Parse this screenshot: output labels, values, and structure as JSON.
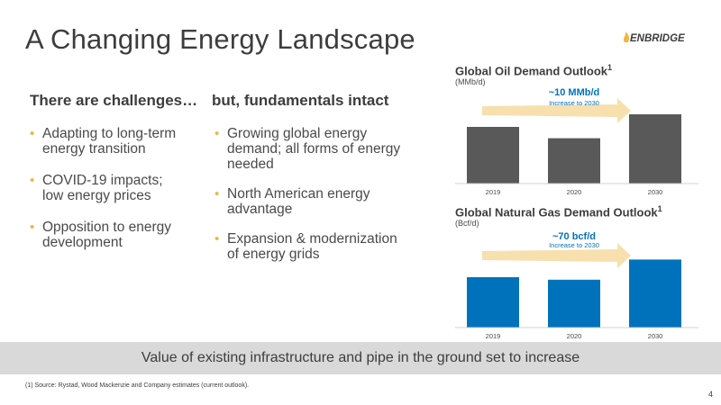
{
  "slide": {
    "title": "A Changing Energy Landscape",
    "logo_text": "ENBRIDGE",
    "left_heading": "There are challenges…",
    "right_heading": "but, fundamentals intact",
    "left_bullets": [
      [
        "Adapting to long-term",
        "energy transition"
      ],
      [
        "COVID-19 impacts;",
        "low energy prices"
      ],
      [
        "Opposition to energy",
        "development"
      ]
    ],
    "right_bullets": [
      [
        "Growing global energy",
        "demand; all forms of energy",
        "needed"
      ],
      [
        "North American energy",
        "advantage"
      ],
      [
        "Expansion & modernization",
        "of energy grids"
      ]
    ],
    "banner": "Value of existing infrastructure and pipe in the ground set to increase",
    "footnote": "(1) Source: Rystad, Wood Mackenzie and Company estimates (current outlook).",
    "page_number": "4",
    "colors": {
      "accent": "#f2b541",
      "oil_bar": "#595959",
      "gas_bar": "#0072bc",
      "callout": "#0072bc"
    }
  },
  "chart_data": [
    {
      "type": "bar",
      "title": "Global Oil Demand Outlook",
      "title_sup": "1",
      "ylabel": "(MMb/d)",
      "categories": [
        "2019",
        "2020",
        "2030"
      ],
      "values": [
        100,
        91,
        110
      ],
      "ylim": [
        55,
        115
      ],
      "callout_main": "~10 MMb/d",
      "callout_sub": "Increase to 2030",
      "grid": false
    },
    {
      "type": "bar",
      "title": "Global Natural Gas Demand Outlook",
      "title_sup": "1",
      "ylabel": "(Bcf/d)",
      "categories": [
        "2019",
        "2020",
        "2030"
      ],
      "values": [
        380,
        370,
        450
      ],
      "ylim": [
        180,
        480
      ],
      "callout_main": "~70 bcf/d",
      "callout_sub": "Increase to 2030",
      "grid": false
    }
  ]
}
